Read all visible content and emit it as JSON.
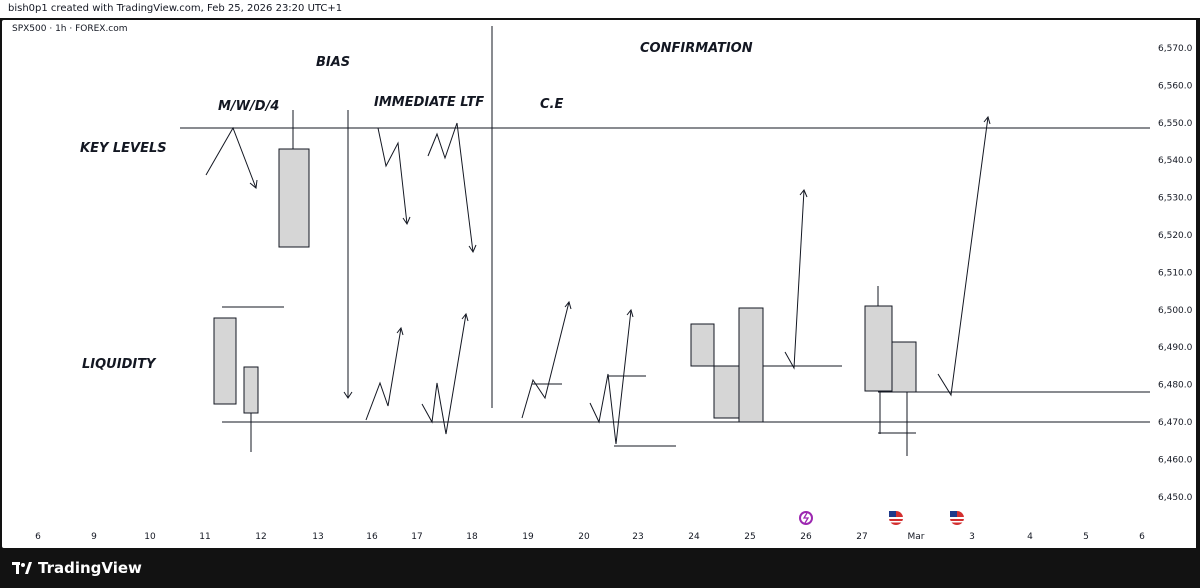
{
  "header": {
    "credit": "bish0p1 created with TradingView.com, Feb 25, 2026 23:20 UTC+1"
  },
  "chart": {
    "symbol_line": "SPX500 · 1h · FOREX.com",
    "annotations": {
      "bias": "BIAS",
      "mwd4": "M/W/D/4",
      "immediate": "IMMEDIATE LTF",
      "confirmation": "CONFIRMATION",
      "ce": "C.E",
      "key_levels": "KEY LEVELS",
      "liquidity": "LIQUIDITY"
    },
    "price_ticks": [
      "6,570.0",
      "6,560.0",
      "6,550.0",
      "6,540.0",
      "6,530.0",
      "6,520.0",
      "6,510.0",
      "6,500.0",
      "6,490.0",
      "6,480.0",
      "6,470.0",
      "6,460.0",
      "6,450.0"
    ],
    "time_ticks": [
      "6",
      "9",
      "10",
      "11",
      "12",
      "13",
      "16",
      "17",
      "18",
      "19",
      "20",
      "23",
      "24",
      "25",
      "26",
      "27",
      "Mar",
      "3",
      "4",
      "5",
      "6"
    ],
    "event_icons": [
      "lightning-event-icon",
      "us-flag-event-icon",
      "us-flag-event-icon"
    ]
  },
  "footer": {
    "brand": "TradingView"
  },
  "colors": {
    "line": "#131722",
    "candle_fill": "#d6d6d6",
    "background": "#ffffff",
    "frame": "#121212"
  }
}
